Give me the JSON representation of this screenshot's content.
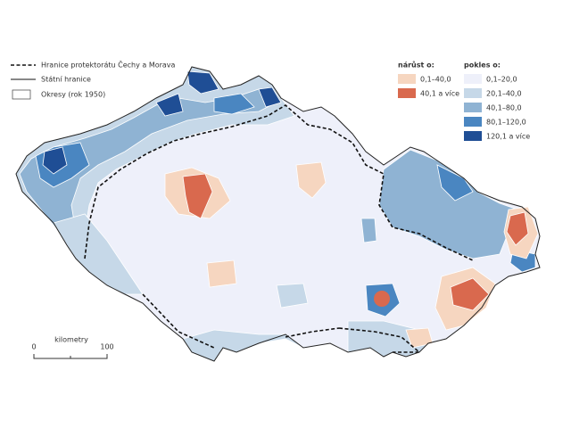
{
  "legend": {
    "lines": [
      {
        "label": "Hranice protektorátu Čechy a Morava"
      },
      {
        "label": "Státní hranice"
      },
      {
        "label": "Okresy (rok 1950)"
      }
    ],
    "increase": {
      "title": "nárůst o:",
      "classes": [
        {
          "label": "0,1–40,0",
          "color": "#f6d6c0"
        },
        {
          "label": "40,1 a více",
          "color": "#d9694e"
        }
      ]
    },
    "decrease": {
      "title": "pokles o:",
      "classes": [
        {
          "label": "0,1–20,0",
          "color": "#eef0fa"
        },
        {
          "label": "20,1–40,0",
          "color": "#c6d8e8"
        },
        {
          "label": "40,1–80,0",
          "color": "#8fb3d3"
        },
        {
          "label": "80,1–120,0",
          "color": "#4a86c1"
        },
        {
          "label": "120,1 a více",
          "color": "#1f4e95"
        }
      ]
    }
  },
  "scale": {
    "title": "kilometry",
    "labels": [
      "0",
      "100"
    ]
  }
}
